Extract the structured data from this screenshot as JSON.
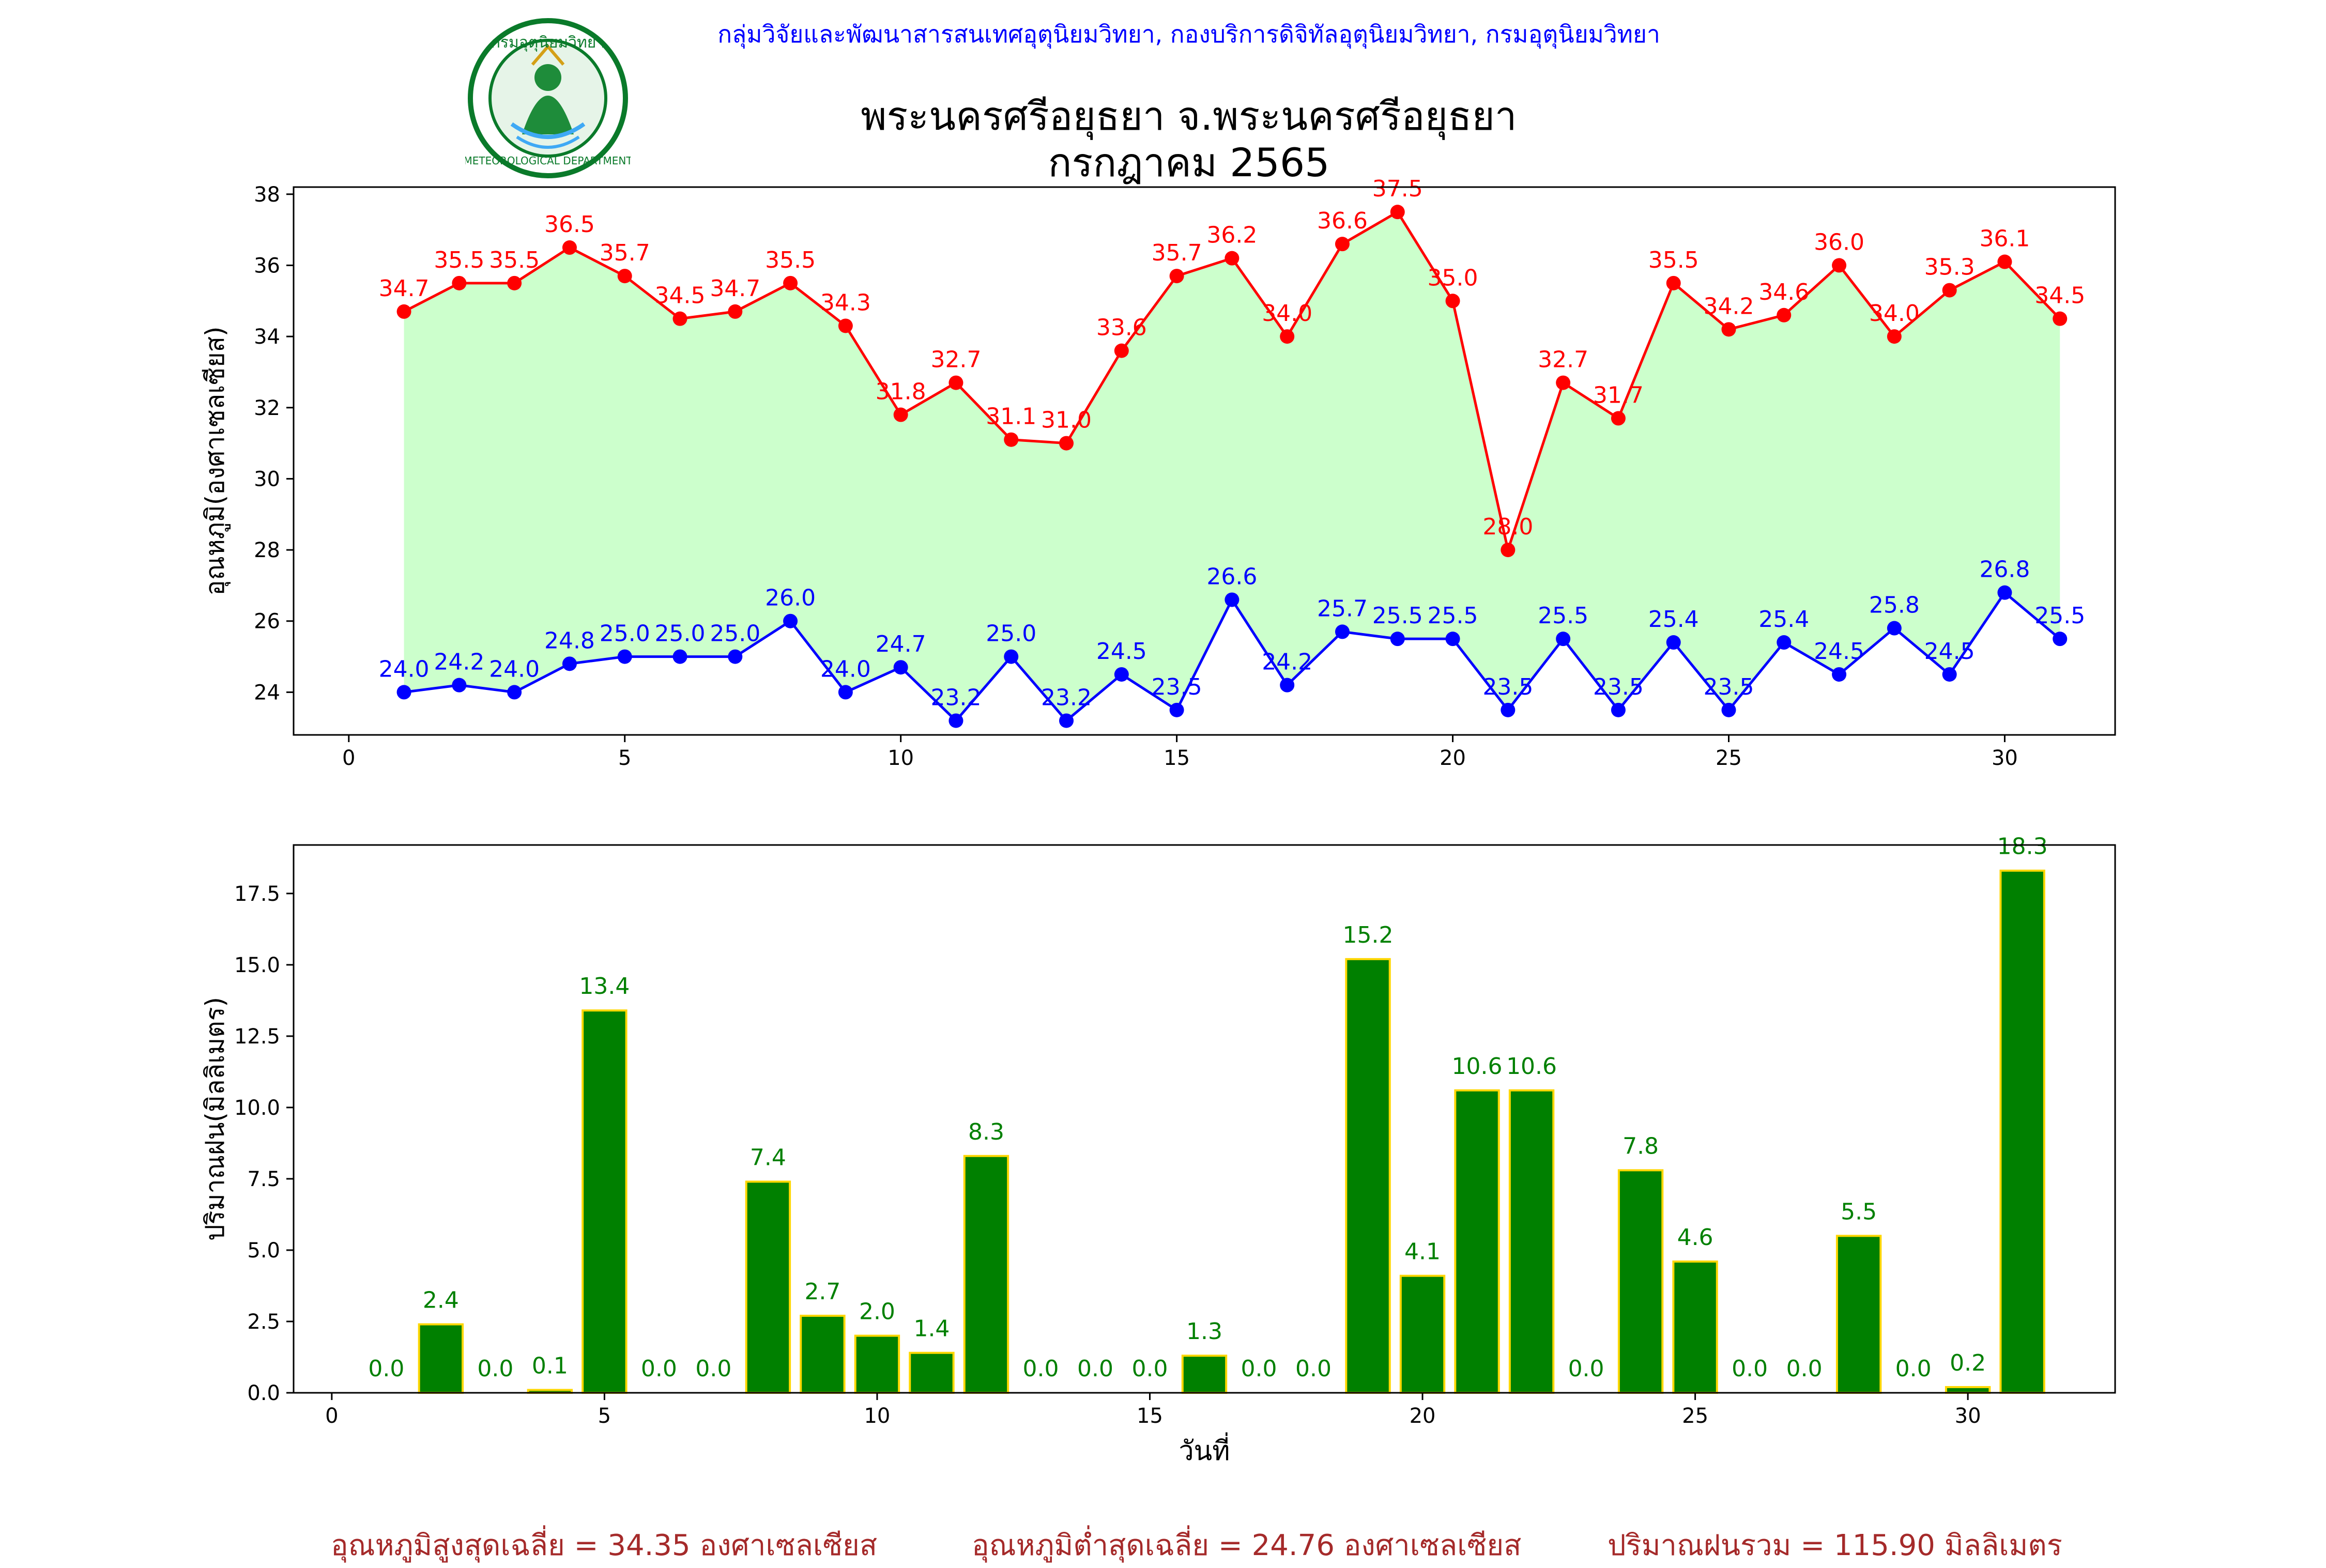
{
  "header": {
    "organization": "กลุ่มวิจัยและพัฒนาสารสนเทศอุตุนิยมวิทยา, กองบริการดิจิทัลอุตุนิยมวิทยา, กรมอุตุนิยมวิทยา",
    "title_line1": "พระนครศรีอยุธยา จ.พระนครศรีอยุธยา",
    "title_line2": "กรกฎาคม 2565",
    "logo_text_top": "กรมอุตุนิยมวิทยา",
    "logo_text_bottom": "METEOROLOGICAL DEPARTMENT",
    "logo_icon": "meteorological-department-seal"
  },
  "colors": {
    "tmax": "#ff0000",
    "tmin": "#0000ff",
    "fill": "#ccffcc",
    "rain_bar": "#008000",
    "rain_edge": "#ffd700",
    "rain_label": "#008000",
    "header_text": "#0000ff",
    "stats_text": "#a52a2a"
  },
  "chart_data": [
    {
      "type": "line",
      "ylabel": "อุณหภูมิ(องศาเซลเซียส)",
      "xlim": [
        -1,
        32
      ],
      "ylim": [
        22.8,
        38.2
      ],
      "xticks": [
        0,
        5,
        10,
        15,
        20,
        25,
        30
      ],
      "yticks": [
        24,
        26,
        28,
        30,
        32,
        34,
        36,
        38
      ],
      "grid": false,
      "fill_between_series": true,
      "x": [
        1,
        2,
        3,
        4,
        5,
        6,
        7,
        8,
        9,
        10,
        11,
        12,
        13,
        14,
        15,
        16,
        17,
        18,
        19,
        20,
        21,
        22,
        23,
        24,
        25,
        26,
        27,
        28,
        29,
        30,
        31
      ],
      "series": [
        {
          "key": "tmax",
          "values": [
            34.7,
            35.5,
            35.5,
            36.5,
            35.7,
            34.5,
            34.7,
            35.5,
            34.3,
            31.8,
            32.7,
            31.1,
            31.0,
            33.6,
            35.7,
            36.2,
            34.0,
            36.6,
            37.5,
            35.0,
            28.0,
            32.7,
            31.7,
            35.5,
            34.2,
            34.6,
            36.0,
            34.0,
            35.3,
            36.1,
            34.5
          ]
        },
        {
          "key": "tmin",
          "values": [
            24.0,
            24.2,
            24.0,
            24.8,
            25.0,
            25.0,
            25.0,
            26.0,
            24.0,
            24.7,
            23.2,
            25.0,
            23.2,
            24.5,
            23.5,
            26.6,
            24.2,
            25.7,
            25.5,
            25.5,
            23.5,
            25.5,
            23.5,
            25.4,
            23.5,
            25.4,
            24.5,
            25.8,
            24.5,
            26.8,
            25.5
          ]
        }
      ]
    },
    {
      "type": "bar",
      "ylabel": "ปริมาณฝน(มิลลิเมตร)",
      "xlabel": "วันที่",
      "xlim": [
        -0.7,
        32.7
      ],
      "ylim": [
        0,
        19.2
      ],
      "xticks": [
        0,
        5,
        10,
        15,
        20,
        25,
        30
      ],
      "yticks": [
        0.0,
        2.5,
        5.0,
        7.5,
        10.0,
        12.5,
        15.0,
        17.5
      ],
      "grid": false,
      "x": [
        1,
        2,
        3,
        4,
        5,
        6,
        7,
        8,
        9,
        10,
        11,
        12,
        13,
        14,
        15,
        16,
        17,
        18,
        19,
        20,
        21,
        22,
        23,
        24,
        25,
        26,
        27,
        28,
        29,
        30,
        31
      ],
      "values": [
        0.0,
        2.4,
        0.0,
        0.1,
        13.4,
        0.0,
        0.0,
        7.4,
        2.7,
        2.0,
        1.4,
        8.3,
        0.0,
        0.0,
        0.0,
        1.3,
        0.0,
        0.0,
        15.2,
        4.1,
        10.6,
        10.6,
        0.0,
        7.8,
        4.6,
        0.0,
        0.0,
        5.5,
        0.0,
        0.2,
        18.3
      ]
    }
  ],
  "stats": {
    "tmax_avg": "อุณหภูมิสูงสุดเฉลี่ย = 34.35 องศาเซลเซียส",
    "tmin_avg": "อุณหภูมิต่ำสุดเฉลี่ย = 24.76 องศาเซลเซียส",
    "rain_total": "ปริมาณฝนรวม = 115.90 มิลลิเมตร"
  }
}
